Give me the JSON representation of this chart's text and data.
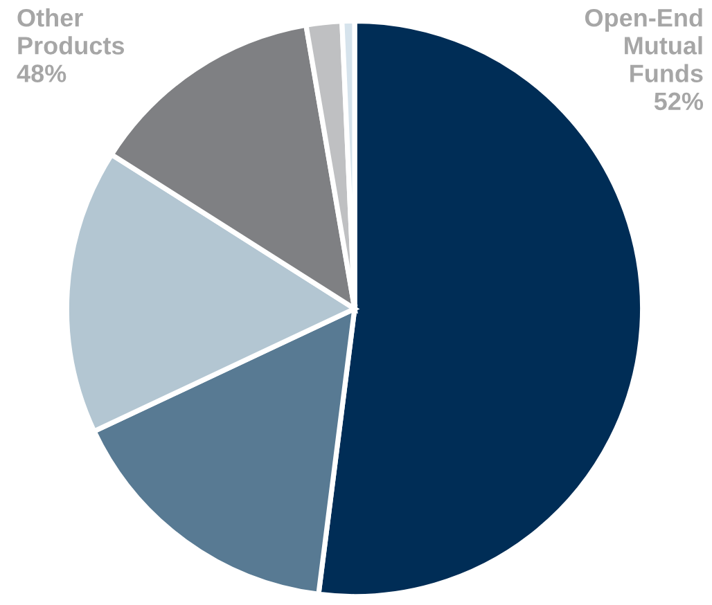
{
  "chart_data": {
    "type": "pie",
    "categories": [
      "Open-End Mutual Funds",
      null,
      null,
      null,
      null,
      null
    ],
    "values": [
      52,
      16,
      16,
      13.3,
      2,
      0.7
    ],
    "colors": [
      "#002d56",
      "#587a93",
      "#b3c6d2",
      "#7f8083",
      "#bfc0c2",
      "#d6e3ec"
    ],
    "value_labels": [
      "52%",
      null,
      null,
      null,
      null,
      null
    ],
    "annotations": [
      "Other Products 48%"
    ]
  }
}
